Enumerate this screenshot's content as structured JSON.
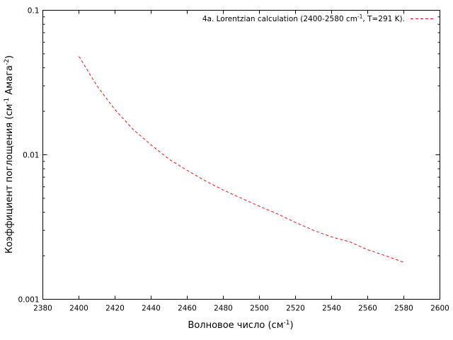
{
  "chart_data": {
    "type": "line",
    "xlabel": "Волновое число (см",
    "xlabel_sup": "-1",
    "xlabel_end": ")",
    "ylabel": "Коэффициент поглощения (см",
    "ylabel_sup1": "-1",
    "ylabel_mid": " Амага",
    "ylabel_sup2": "-2",
    "ylabel_end": ")",
    "xlim": [
      2380,
      2600
    ],
    "ylim": [
      0.001,
      0.1
    ],
    "yscale": "log",
    "x_ticks": [
      2380,
      2400,
      2420,
      2440,
      2460,
      2480,
      2500,
      2520,
      2540,
      2560,
      2580,
      2600
    ],
    "y_ticks": [
      0.001,
      0.01,
      0.1
    ],
    "y_tick_labels": [
      "0.001",
      "0.01",
      "0.1"
    ],
    "grid": false,
    "legend_position": "top-right",
    "legend_text_a": "4a. Lorentzian calculation (2400-2580 cm",
    "legend_sup": "-1",
    "legend_text_b": ", T=291 K).",
    "series": [
      {
        "color": "#e8161e",
        "line_style": "dashed",
        "x": [
          2400,
          2410,
          2420,
          2430,
          2440,
          2450,
          2460,
          2470,
          2480,
          2490,
          2500,
          2510,
          2520,
          2530,
          2540,
          2550,
          2560,
          2570,
          2580
        ],
        "y": [
          0.048,
          0.03,
          0.0205,
          0.015,
          0.0117,
          0.0093,
          0.0078,
          0.0066,
          0.0057,
          0.005,
          0.0044,
          0.0039,
          0.0034,
          0.003,
          0.0027,
          0.0025,
          0.0022,
          0.002,
          0.0018
        ]
      }
    ]
  }
}
